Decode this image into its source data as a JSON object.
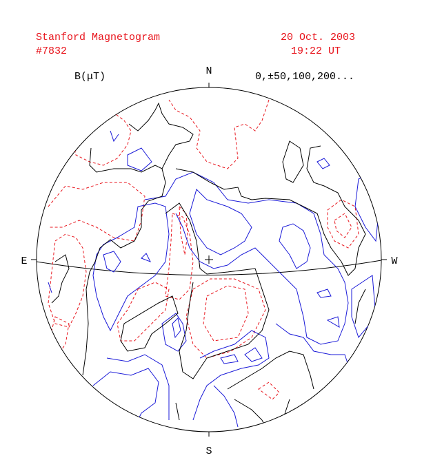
{
  "header": {
    "title": "Stanford Magnetogram",
    "number": "#7832",
    "date": "20 Oct. 2003",
    "time": "19:22 UT"
  },
  "plot": {
    "unit_label": "B(μT)",
    "levels_label": "0,±50,100,200...",
    "directions": {
      "north": "N",
      "south": "S",
      "east": "E",
      "west": "W"
    }
  }
}
